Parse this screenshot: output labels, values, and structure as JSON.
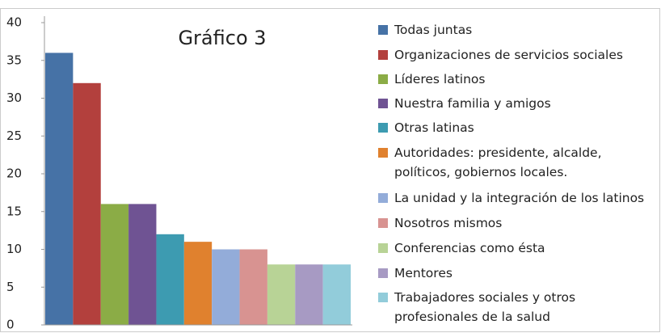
{
  "chart_data": {
    "type": "bar",
    "title": "Gráfico 3",
    "categories": [
      "Todas juntas",
      "Organizaciones de servicios sociales",
      "Líderes latinos",
      "Nuestra familia y amigos",
      "Otras latinas",
      "Autoridades: presidente,  alcalde,\npolíticos, gobiernos locales.",
      "La unidad y la integración de los latinos",
      "Nosotros mismos",
      "Conferencias como ésta",
      "Mentores",
      "Trabajadores sociales y otros\nprofesionales de la salud"
    ],
    "values": [
      36,
      32,
      16,
      16,
      12,
      11,
      10,
      10,
      8,
      8,
      8
    ],
    "colors": [
      "#4672a6",
      "#b3403d",
      "#8bac46",
      "#6f5393",
      "#3d9bb1",
      "#e0812e",
      "#93acd9",
      "#d89391",
      "#b8d396",
      "#a79ac3",
      "#92ccda"
    ],
    "ylim": [
      0,
      40
    ],
    "yticks": [
      0,
      5,
      10,
      15,
      20,
      25,
      30,
      35,
      40
    ],
    "grid": false,
    "legend": "right"
  }
}
